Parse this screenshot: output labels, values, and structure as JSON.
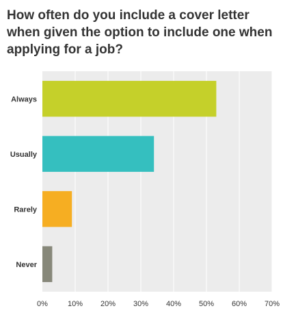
{
  "title": "How often do you include a cover letter when given the option to include one when applying for a job?",
  "colors": {
    "plot_bg": "#ececec",
    "grid": "#ffffff",
    "bars": [
      "#c5d02a",
      "#35bfbf",
      "#f6ae22",
      "#87887a"
    ]
  },
  "chart_data": {
    "type": "bar",
    "orientation": "horizontal",
    "title": "How often do you include a cover letter when given the option to include one when applying for a job?",
    "categories": [
      "Always",
      "Usually",
      "Rarely",
      "Never"
    ],
    "values": [
      53,
      34,
      9,
      3
    ],
    "xlabel": "",
    "ylabel": "",
    "xlim": [
      0,
      70
    ],
    "ticks": [
      0,
      10,
      20,
      30,
      40,
      50,
      60,
      70
    ],
    "tick_labels": [
      "0%",
      "10%",
      "20%",
      "30%",
      "40%",
      "50%",
      "60%",
      "70%"
    ],
    "grid": true,
    "legend": "none"
  }
}
